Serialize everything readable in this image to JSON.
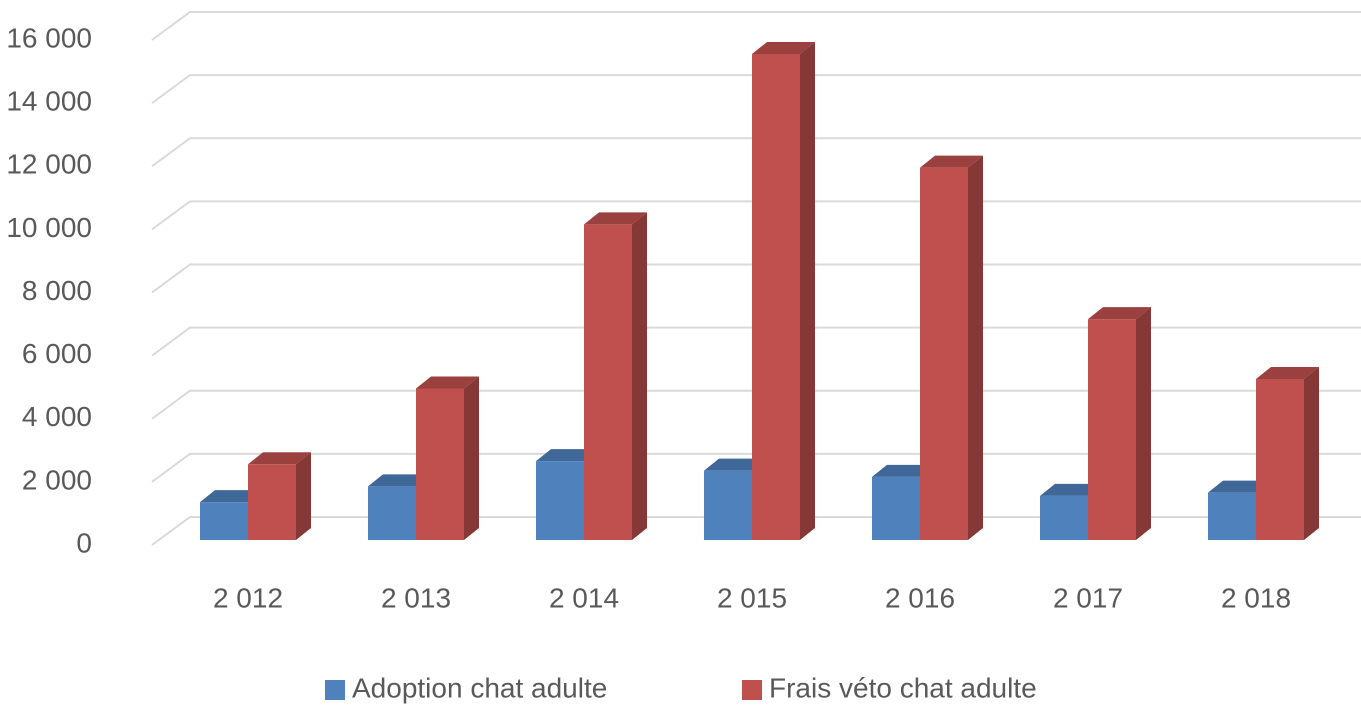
{
  "chart_data": {
    "type": "bar3d",
    "categories": [
      "2 012",
      "2 013",
      "2 014",
      "2 015",
      "2 016",
      "2 017",
      "2 018"
    ],
    "series": [
      {
        "name": "Adoption chat adulte",
        "color": "#4f81bd",
        "values": [
          1200,
          1700,
          2500,
          2200,
          2000,
          1400,
          1500
        ]
      },
      {
        "name": "Frais véto chat adulte",
        "color": "#c0504d",
        "values": [
          2400,
          4800,
          10000,
          15400,
          11800,
          7000,
          5100
        ]
      }
    ],
    "ylim": [
      0,
      16000
    ],
    "yticks": [
      {
        "value": 0,
        "label": "0"
      },
      {
        "value": 2000,
        "label": "2 000"
      },
      {
        "value": 4000,
        "label": "4 000"
      },
      {
        "value": 6000,
        "label": "6 000"
      },
      {
        "value": 8000,
        "label": "8 000"
      },
      {
        "value": 10000,
        "label": "10 000"
      },
      {
        "value": 12000,
        "label": "12 000"
      },
      {
        "value": 14000,
        "label": "14 000"
      },
      {
        "value": 16000,
        "label": "16 000"
      }
    ],
    "grid": true,
    "legend": "bottom"
  }
}
